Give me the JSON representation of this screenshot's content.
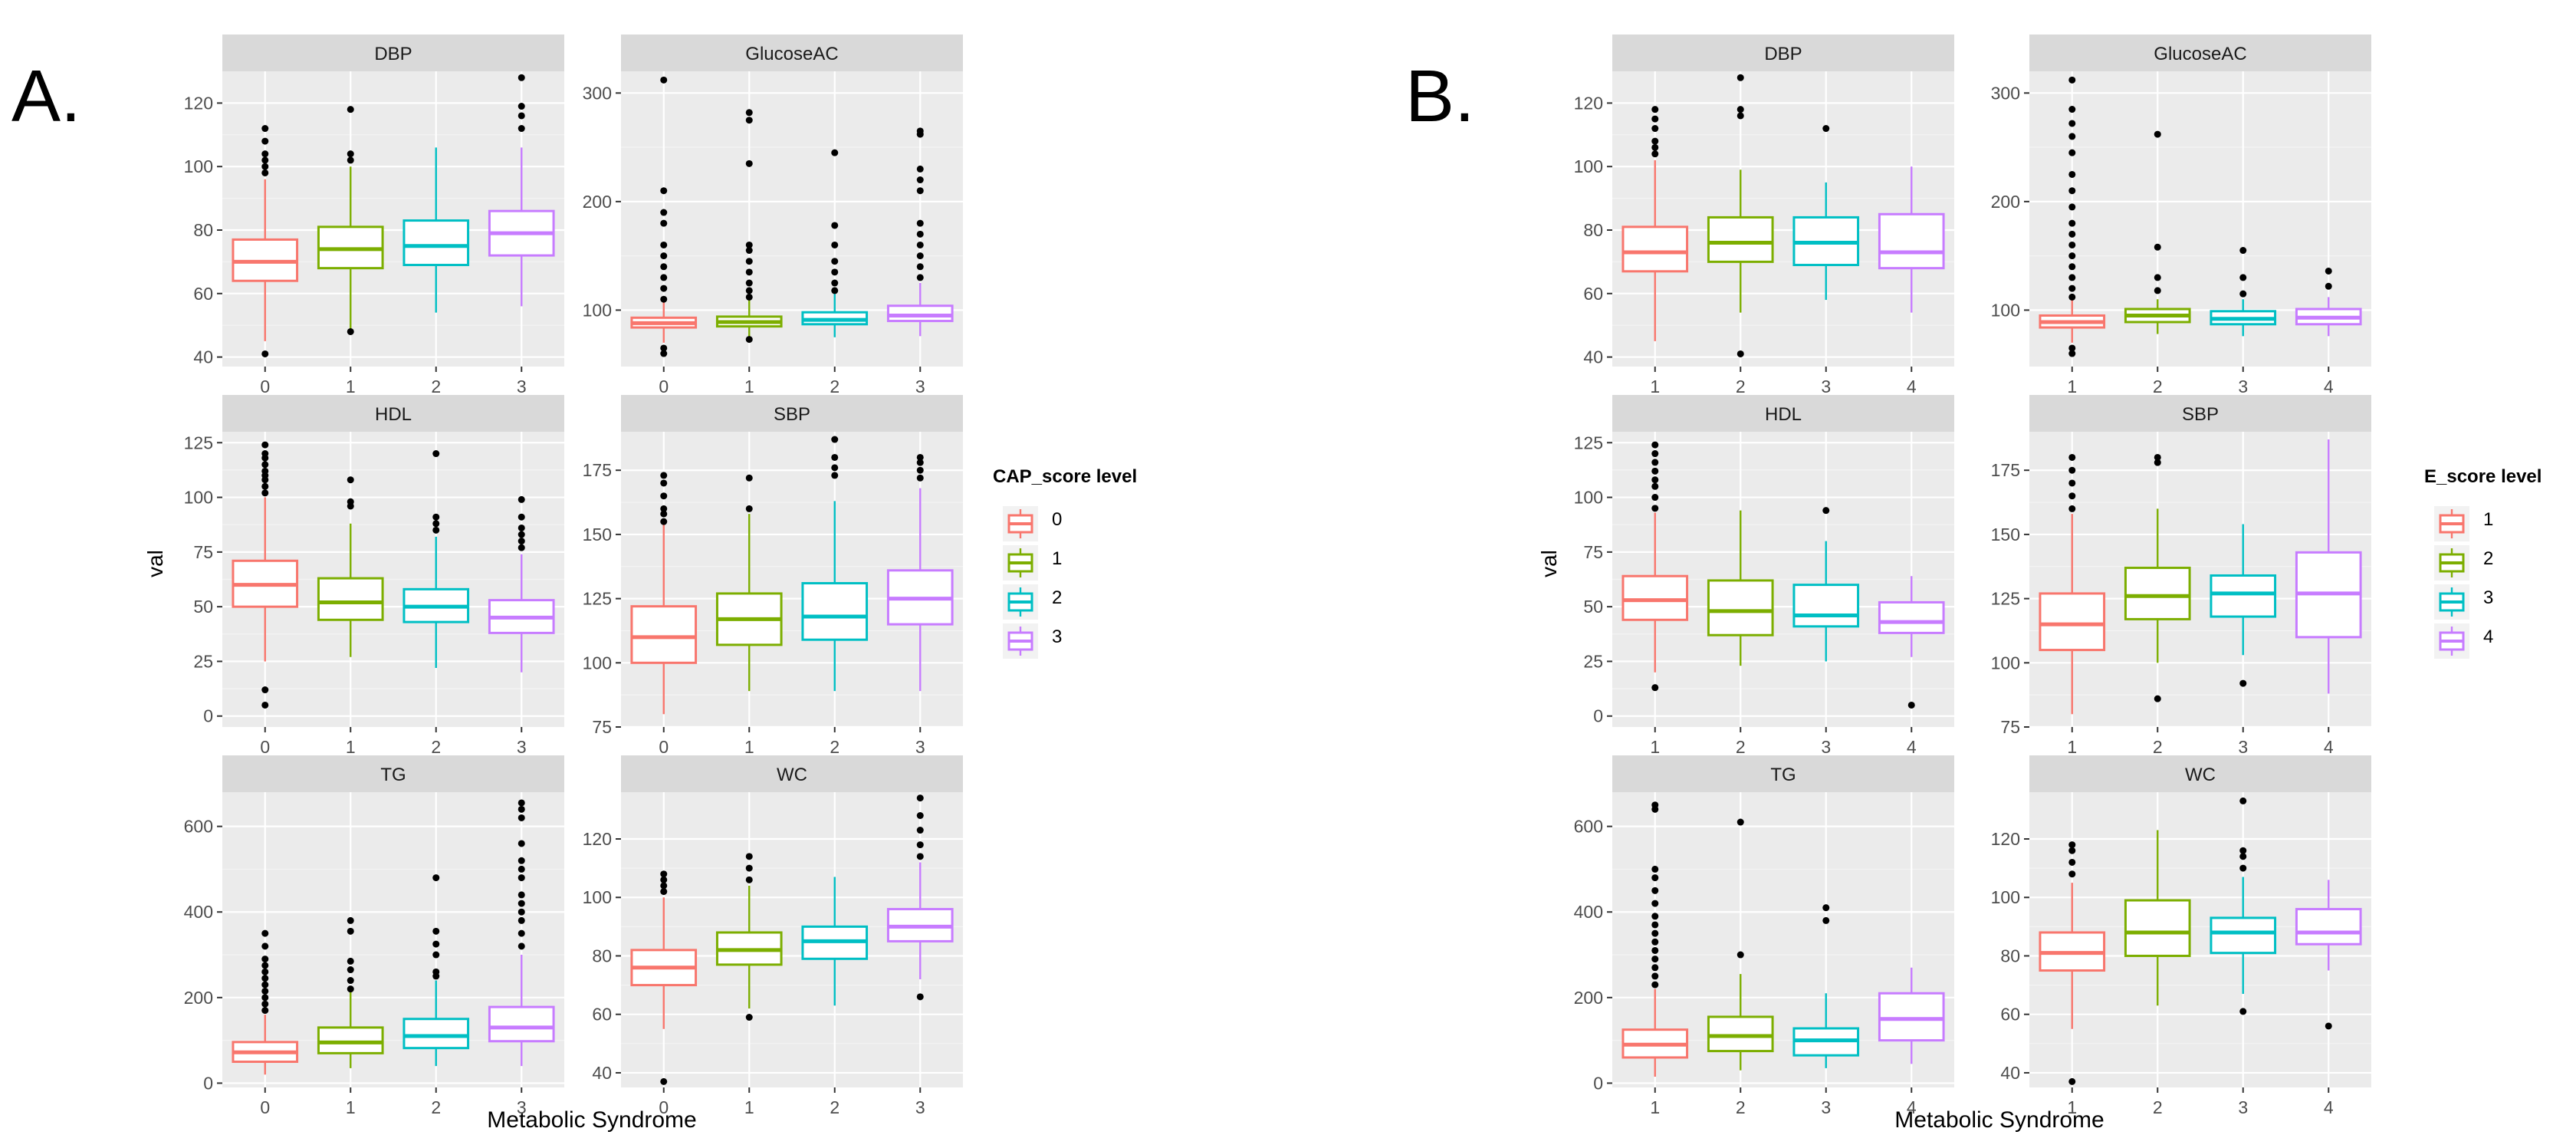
{
  "colors": {
    "panel_bg": "#ebebeb",
    "strip_bg": "#d9d9d9",
    "grid_major": "#ffffff",
    "grid_minor": "#f4f4f4",
    "text": "#000000",
    "tick_text": "#4d4d4d",
    "levels": [
      "#f8766d",
      "#7cae00",
      "#00bfc4",
      "#c77cff"
    ]
  },
  "figures": [
    {
      "label": "A.",
      "ylabel": "val",
      "xlabel": "Metabolic Syndrome",
      "legend": {
        "title": "CAP_score level",
        "entries": [
          "0",
          "1",
          "2",
          "3"
        ]
      },
      "categories": [
        "0",
        "1",
        "2",
        "3"
      ]
    },
    {
      "label": "B.",
      "ylabel": "val",
      "xlabel": "Metabolic Syndrome",
      "legend": {
        "title": "E_score level",
        "entries": [
          "1",
          "2",
          "3",
          "4"
        ]
      },
      "categories": [
        "1",
        "2",
        "3",
        "4"
      ]
    }
  ],
  "chart_data": [
    {
      "type": "boxplot",
      "figure": "A",
      "legend_title": "CAP_score level",
      "xlabel": "Metabolic Syndrome",
      "ylabel": "val",
      "categories": [
        "0",
        "1",
        "2",
        "3"
      ],
      "facets": [
        {
          "title": "DBP",
          "ylim": [
            37,
            130
          ],
          "yticks": [
            40,
            60,
            80,
            100,
            120
          ],
          "boxes": [
            {
              "q1": 64,
              "median": 70,
              "q3": 77,
              "lo": 45,
              "hi": 96,
              "outliers": [
                41,
                98,
                100,
                102,
                104,
                108,
                112
              ]
            },
            {
              "q1": 68,
              "median": 74,
              "q3": 81,
              "lo": 48,
              "hi": 100,
              "outliers": [
                48,
                102,
                104,
                118
              ]
            },
            {
              "q1": 69,
              "median": 75,
              "q3": 83,
              "lo": 54,
              "hi": 106,
              "outliers": []
            },
            {
              "q1": 72,
              "median": 79,
              "q3": 86,
              "lo": 56,
              "hi": 106,
              "outliers": [
                112,
                116,
                119,
                128
              ]
            }
          ]
        },
        {
          "title": "GlucoseAC",
          "ylim": [
            48,
            320
          ],
          "yticks": [
            100,
            200,
            300
          ],
          "boxes": [
            {
              "q1": 84,
              "median": 88,
              "q3": 93,
              "lo": 70,
              "hi": 108,
              "outliers": [
                60,
                65,
                110,
                120,
                130,
                140,
                150,
                160,
                180,
                190,
                210,
                312
              ]
            },
            {
              "q1": 85,
              "median": 89,
              "q3": 94,
              "lo": 73,
              "hi": 110,
              "outliers": [
                73,
                112,
                118,
                125,
                135,
                145,
                155,
                160,
                235,
                275,
                282
              ]
            },
            {
              "q1": 87,
              "median": 91,
              "q3": 98,
              "lo": 75,
              "hi": 115,
              "outliers": [
                118,
                125,
                135,
                145,
                160,
                178,
                245
              ]
            },
            {
              "q1": 90,
              "median": 95,
              "q3": 104,
              "lo": 76,
              "hi": 125,
              "outliers": [
                130,
                140,
                150,
                160,
                170,
                180,
                210,
                220,
                230,
                262,
                265
              ]
            }
          ]
        },
        {
          "title": "HDL",
          "ylim": [
            -5,
            130
          ],
          "yticks": [
            0,
            25,
            50,
            75,
            100,
            125
          ],
          "boxes": [
            {
              "q1": 50,
              "median": 60,
              "q3": 71,
              "lo": 25,
              "hi": 100,
              "outliers": [
                5,
                12,
                102,
                105,
                108,
                110,
                112,
                115,
                118,
                120,
                124
              ]
            },
            {
              "q1": 44,
              "median": 52,
              "q3": 63,
              "lo": 27,
              "hi": 88,
              "outliers": [
                96,
                98,
                108
              ]
            },
            {
              "q1": 43,
              "median": 50,
              "q3": 58,
              "lo": 22,
              "hi": 82,
              "outliers": [
                85,
                88,
                91,
                120
              ]
            },
            {
              "q1": 38,
              "median": 45,
              "q3": 53,
              "lo": 20,
              "hi": 74,
              "outliers": [
                77,
                80,
                83,
                86,
                91,
                99
              ]
            }
          ]
        },
        {
          "title": "SBP",
          "ylim": [
            75,
            190
          ],
          "yticks": [
            75,
            100,
            125,
            150,
            175
          ],
          "boxes": [
            {
              "q1": 100,
              "median": 110,
              "q3": 122,
              "lo": 80,
              "hi": 155,
              "outliers": [
                155,
                158,
                160,
                165,
                170,
                173
              ]
            },
            {
              "q1": 107,
              "median": 117,
              "q3": 127,
              "lo": 89,
              "hi": 158,
              "outliers": [
                160,
                172
              ]
            },
            {
              "q1": 109,
              "median": 118,
              "q3": 131,
              "lo": 89,
              "hi": 163,
              "outliers": [
                173,
                176,
                180,
                187
              ]
            },
            {
              "q1": 115,
              "median": 125,
              "q3": 136,
              "lo": 89,
              "hi": 168,
              "outliers": [
                172,
                175,
                178,
                180
              ]
            }
          ]
        },
        {
          "title": "TG",
          "ylim": [
            -10,
            680
          ],
          "yticks": [
            0,
            200,
            400,
            600
          ],
          "boxes": [
            {
              "q1": 50,
              "median": 72,
              "q3": 96,
              "lo": 20,
              "hi": 160,
              "outliers": [
                170,
                185,
                200,
                215,
                230,
                245,
                260,
                275,
                290,
                320,
                350
              ]
            },
            {
              "q1": 70,
              "median": 95,
              "q3": 130,
              "lo": 35,
              "hi": 215,
              "outliers": [
                220,
                240,
                265,
                285,
                355,
                380
              ]
            },
            {
              "q1": 82,
              "median": 110,
              "q3": 150,
              "lo": 40,
              "hi": 240,
              "outliers": [
                250,
                260,
                300,
                325,
                355,
                480
              ]
            },
            {
              "q1": 98,
              "median": 130,
              "q3": 178,
              "lo": 40,
              "hi": 300,
              "outliers": [
                320,
                350,
                380,
                400,
                420,
                440,
                480,
                500,
                520,
                560,
                620,
                640,
                655
              ]
            }
          ]
        },
        {
          "title": "WC",
          "ylim": [
            35,
            136
          ],
          "yticks": [
            40,
            60,
            80,
            100,
            120
          ],
          "boxes": [
            {
              "q1": 70,
              "median": 76,
              "q3": 82,
              "lo": 55,
              "hi": 100,
              "outliers": [
                37,
                102,
                104,
                106,
                108
              ]
            },
            {
              "q1": 77,
              "median": 82,
              "q3": 88,
              "lo": 62,
              "hi": 104,
              "outliers": [
                59,
                106,
                110,
                114
              ]
            },
            {
              "q1": 79,
              "median": 85,
              "q3": 90,
              "lo": 63,
              "hi": 107,
              "outliers": []
            },
            {
              "q1": 85,
              "median": 90,
              "q3": 96,
              "lo": 72,
              "hi": 112,
              "outliers": [
                66,
                114,
                118,
                123,
                128,
                134
              ]
            }
          ]
        }
      ]
    },
    {
      "type": "boxplot",
      "figure": "B",
      "legend_title": "E_score level",
      "xlabel": "Metabolic Syndrome",
      "ylabel": "val",
      "categories": [
        "1",
        "2",
        "3",
        "4"
      ],
      "facets": [
        {
          "title": "DBP",
          "ylim": [
            37,
            130
          ],
          "yticks": [
            40,
            60,
            80,
            100,
            120
          ],
          "boxes": [
            {
              "q1": 67,
              "median": 73,
              "q3": 81,
              "lo": 45,
              "hi": 102,
              "outliers": [
                104,
                106,
                108,
                112,
                115,
                118
              ]
            },
            {
              "q1": 70,
              "median": 76,
              "q3": 84,
              "lo": 54,
              "hi": 99,
              "outliers": [
                41,
                116,
                118,
                128
              ]
            },
            {
              "q1": 69,
              "median": 76,
              "q3": 84,
              "lo": 58,
              "hi": 95,
              "outliers": [
                112
              ]
            },
            {
              "q1": 68,
              "median": 73,
              "q3": 85,
              "lo": 54,
              "hi": 100,
              "outliers": []
            }
          ]
        },
        {
          "title": "GlucoseAC",
          "ylim": [
            48,
            320
          ],
          "yticks": [
            100,
            200,
            300
          ],
          "boxes": [
            {
              "q1": 84,
              "median": 89,
              "q3": 95,
              "lo": 70,
              "hi": 110,
              "outliers": [
                60,
                65,
                112,
                120,
                130,
                140,
                150,
                160,
                170,
                180,
                195,
                210,
                225,
                245,
                260,
                272,
                285,
                312
              ]
            },
            {
              "q1": 89,
              "median": 95,
              "q3": 101,
              "lo": 78,
              "hi": 110,
              "outliers": [
                118,
                130,
                158,
                262
              ]
            },
            {
              "q1": 87,
              "median": 92,
              "q3": 99,
              "lo": 76,
              "hi": 110,
              "outliers": [
                115,
                130,
                155
              ]
            },
            {
              "q1": 87,
              "median": 93,
              "q3": 101,
              "lo": 76,
              "hi": 112,
              "outliers": [
                122,
                136
              ]
            }
          ]
        },
        {
          "title": "HDL",
          "ylim": [
            -5,
            130
          ],
          "yticks": [
            0,
            25,
            50,
            75,
            100,
            125
          ],
          "boxes": [
            {
              "q1": 44,
              "median": 53,
              "q3": 64,
              "lo": 20,
              "hi": 93,
              "outliers": [
                13,
                95,
                100,
                105,
                108,
                112,
                116,
                120,
                124
              ]
            },
            {
              "q1": 37,
              "median": 48,
              "q3": 62,
              "lo": 23,
              "hi": 94,
              "outliers": []
            },
            {
              "q1": 41,
              "median": 46,
              "q3": 60,
              "lo": 25,
              "hi": 80,
              "outliers": [
                94
              ]
            },
            {
              "q1": 38,
              "median": 43,
              "q3": 52,
              "lo": 27,
              "hi": 64,
              "outliers": [
                5
              ]
            }
          ]
        },
        {
          "title": "SBP",
          "ylim": [
            75,
            190
          ],
          "yticks": [
            75,
            100,
            125,
            150,
            175
          ],
          "boxes": [
            {
              "q1": 105,
              "median": 115,
              "q3": 127,
              "lo": 80,
              "hi": 158,
              "outliers": [
                160,
                165,
                170,
                175,
                180
              ]
            },
            {
              "q1": 117,
              "median": 126,
              "q3": 137,
              "lo": 100,
              "hi": 160,
              "outliers": [
                86,
                178,
                180
              ]
            },
            {
              "q1": 118,
              "median": 127,
              "q3": 134,
              "lo": 103,
              "hi": 154,
              "outliers": [
                92
              ]
            },
            {
              "q1": 110,
              "median": 127,
              "q3": 143,
              "lo": 88,
              "hi": 187,
              "outliers": []
            }
          ]
        },
        {
          "title": "TG",
          "ylim": [
            -10,
            680
          ],
          "yticks": [
            0,
            200,
            400,
            600
          ],
          "boxes": [
            {
              "q1": 60,
              "median": 90,
              "q3": 125,
              "lo": 15,
              "hi": 220,
              "outliers": [
                230,
                250,
                270,
                290,
                310,
                330,
                350,
                370,
                390,
                420,
                450,
                480,
                500,
                640,
                650
              ]
            },
            {
              "q1": 75,
              "median": 110,
              "q3": 155,
              "lo": 30,
              "hi": 255,
              "outliers": [
                300,
                610
              ]
            },
            {
              "q1": 65,
              "median": 100,
              "q3": 128,
              "lo": 35,
              "hi": 210,
              "outliers": [
                380,
                410
              ]
            },
            {
              "q1": 100,
              "median": 150,
              "q3": 210,
              "lo": 45,
              "hi": 270,
              "outliers": []
            }
          ]
        },
        {
          "title": "WC",
          "ylim": [
            35,
            136
          ],
          "yticks": [
            40,
            60,
            80,
            100,
            120
          ],
          "boxes": [
            {
              "q1": 75,
              "median": 81,
              "q3": 88,
              "lo": 55,
              "hi": 105,
              "outliers": [
                37,
                108,
                112,
                116,
                118
              ]
            },
            {
              "q1": 80,
              "median": 88,
              "q3": 99,
              "lo": 63,
              "hi": 123,
              "outliers": []
            },
            {
              "q1": 81,
              "median": 88,
              "q3": 93,
              "lo": 67,
              "hi": 107,
              "outliers": [
                61,
                110,
                114,
                116,
                133
              ]
            },
            {
              "q1": 84,
              "median": 88,
              "q3": 96,
              "lo": 75,
              "hi": 106,
              "outliers": [
                56
              ]
            }
          ]
        }
      ]
    }
  ]
}
